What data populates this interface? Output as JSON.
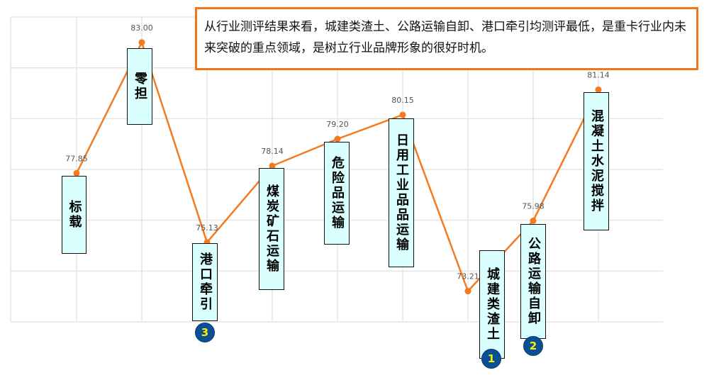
{
  "chart_data": {
    "type": "line",
    "categories": [
      "标载",
      "零担",
      "港口牵引",
      "煤炭矿石运输",
      "危险品运输",
      "日用工业品品运输",
      "城建类渣土",
      "公路运输自卸",
      "混凝土水泥搅拌"
    ],
    "values": [
      77.85,
      83.0,
      75.13,
      78.14,
      79.2,
      80.15,
      73.21,
      75.98,
      81.14
    ],
    "value_labels": [
      "77.85",
      "83.00",
      "75.13",
      "78.14",
      "79.20",
      "80.15",
      "73.21",
      "75.98",
      "81.14"
    ],
    "ylim": [
      72,
      84
    ],
    "grid": true,
    "line_color": "#f47a20",
    "rank_badges": [
      {
        "category": "城建类渣土",
        "rank": "1"
      },
      {
        "category": "公路运输自卸",
        "rank": "2"
      },
      {
        "category": "港口牵引",
        "rank": "3"
      }
    ]
  },
  "annotation": "从行业测评结果来看，城建类渣土、公路运输自卸、港口牵引均测评最低，是重卡行业内未来突破的重点领域，是树立行业品牌形象的很好时机。"
}
